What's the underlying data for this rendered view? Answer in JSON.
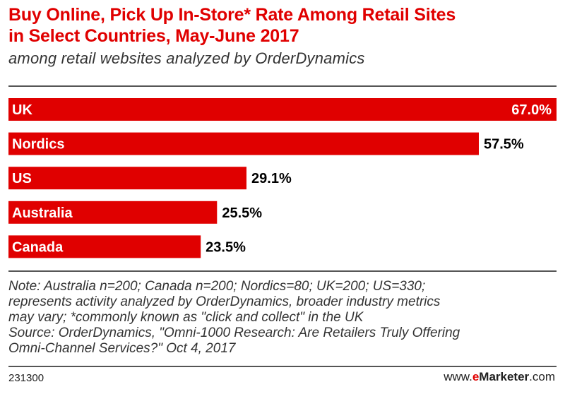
{
  "title_lines": [
    "Buy Online, Pick Up In-Store* Rate Among Retail Sites",
    "in Select Countries, May-June 2017"
  ],
  "subtitle": "among retail websites analyzed by OrderDynamics",
  "chart_data": {
    "type": "bar",
    "orientation": "horizontal",
    "title": "Buy Online, Pick Up In-Store* Rate Among Retail Sites in Select Countries, May-June 2017",
    "subtitle": "among retail websites analyzed by OrderDynamics",
    "categories": [
      "UK",
      "Nordics",
      "US",
      "Australia",
      "Canada"
    ],
    "values": [
      67.0,
      57.5,
      29.1,
      25.5,
      23.5
    ],
    "value_labels": [
      "67.0%",
      "57.5%",
      "29.1%",
      "25.5%",
      "23.5%"
    ],
    "unit": "%",
    "xlim": [
      0,
      67.0
    ],
    "grid": false,
    "legend": "none",
    "bar_color": "#e00000",
    "label_color_inside": "#ffffff",
    "label_color_outside": "#000000"
  },
  "note_lines": [
    "Note: Australia n=200; Canada n=200; Nordics=80; UK=200; US=330;",
    "represents activity analyzed by OrderDynamics, broader industry metrics",
    "may vary; *commonly known as \"click and collect\" in the UK",
    "Source: OrderDynamics, \"Omni-1000 Research: Are Retailers Truly Offering",
    "Omni-Channel Services?\" Oct 4, 2017"
  ],
  "footer": {
    "chart_id": "231300",
    "brand_prefix": "www.",
    "brand_e": "e",
    "brand_name": "Marketer",
    "brand_suffix": ".com"
  },
  "colors": {
    "accent": "#e00000",
    "text": "#333333",
    "rule": "#555555"
  }
}
